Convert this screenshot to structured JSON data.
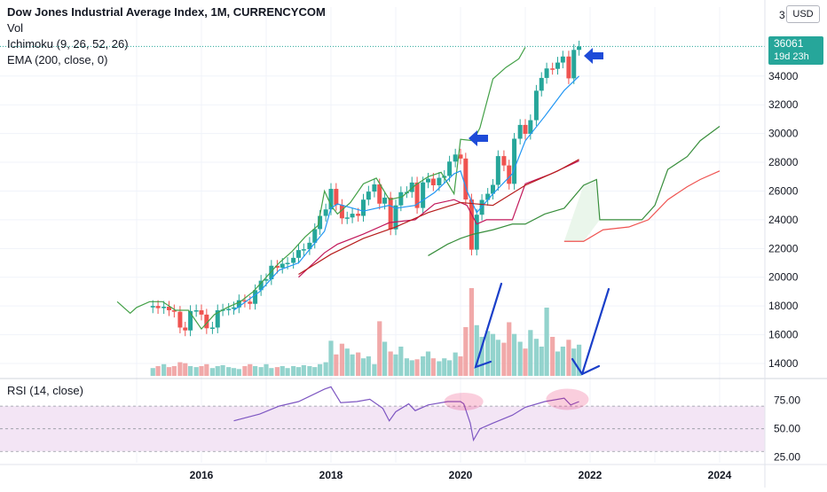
{
  "legend": {
    "title": "Dow Jones Industrial Average Index, 1M, CURRENCYCOM",
    "vol": "Vol",
    "ichimoku": "Ichimoku (9, 26, 52, 26)",
    "ema": "EMA (200, close, 0)",
    "rsi": "RSI (14, close)"
  },
  "currency_label": "USD",
  "last_price": {
    "value": "36061",
    "countdown": "19d 23h"
  },
  "colors": {
    "up": "#26a69a",
    "down": "#ef5350",
    "tenkan": "#2196f3",
    "kijun": "#c2185b",
    "lagging": "#43a047",
    "lead": "#388e3c",
    "ema": "#b71c1c",
    "rsi_line": "#7e57c2",
    "rsi_band": "#f3e5f5",
    "arrow_blue": "#1e4bd8",
    "highlight": "#e91e63"
  },
  "chart_data": {
    "type": "candlestick",
    "symbol": "Dow Jones Industrial Average Index",
    "interval": "1M",
    "y_axis_ticks": [
      14000,
      16000,
      18000,
      20000,
      22000,
      24000,
      26000,
      28000,
      30000,
      32000,
      34000
    ],
    "y_axis_top_partial_label": "3",
    "x_axis_ticks": [
      "2016",
      "2018",
      "2020",
      "2022",
      "2024"
    ],
    "x_range": [
      2014.6,
      2024.8
    ],
    "y_range": [
      13000,
      38000
    ],
    "candles": [
      {
        "t": 2015.25,
        "o": 17900,
        "c": 18000
      },
      {
        "t": 2015.33,
        "o": 18000,
        "c": 17850
      },
      {
        "t": 2015.42,
        "o": 17850,
        "c": 17950
      },
      {
        "t": 2015.5,
        "o": 17950,
        "c": 17700
      },
      {
        "t": 2015.58,
        "o": 17700,
        "c": 17600
      },
      {
        "t": 2015.67,
        "o": 17600,
        "c": 16500
      },
      {
        "t": 2015.75,
        "o": 16500,
        "c": 16300
      },
      {
        "t": 2015.83,
        "o": 16300,
        "c": 17650
      },
      {
        "t": 2015.92,
        "o": 17650,
        "c": 17700
      },
      {
        "t": 2016.0,
        "o": 17700,
        "c": 17400
      },
      {
        "t": 2016.08,
        "o": 17400,
        "c": 16450
      },
      {
        "t": 2016.17,
        "o": 16450,
        "c": 16500
      },
      {
        "t": 2016.25,
        "o": 16500,
        "c": 17700
      },
      {
        "t": 2016.33,
        "o": 17700,
        "c": 17750
      },
      {
        "t": 2016.42,
        "o": 17750,
        "c": 17800
      },
      {
        "t": 2016.5,
        "o": 17800,
        "c": 17900
      },
      {
        "t": 2016.58,
        "o": 17900,
        "c": 18400
      },
      {
        "t": 2016.67,
        "o": 18400,
        "c": 18300
      },
      {
        "t": 2016.75,
        "o": 18300,
        "c": 18150
      },
      {
        "t": 2016.83,
        "o": 18150,
        "c": 19100
      },
      {
        "t": 2016.92,
        "o": 19100,
        "c": 19760
      },
      {
        "t": 2017.0,
        "o": 19760,
        "c": 19860
      },
      {
        "t": 2017.08,
        "o": 19860,
        "c": 20800
      },
      {
        "t": 2017.17,
        "o": 20800,
        "c": 20660
      },
      {
        "t": 2017.25,
        "o": 20660,
        "c": 20940
      },
      {
        "t": 2017.33,
        "o": 20940,
        "c": 21000
      },
      {
        "t": 2017.42,
        "o": 21000,
        "c": 21350
      },
      {
        "t": 2017.5,
        "o": 21350,
        "c": 21890
      },
      {
        "t": 2017.58,
        "o": 21890,
        "c": 21950
      },
      {
        "t": 2017.67,
        "o": 21950,
        "c": 22400
      },
      {
        "t": 2017.75,
        "o": 22400,
        "c": 23350
      },
      {
        "t": 2017.83,
        "o": 23350,
        "c": 24270
      },
      {
        "t": 2017.92,
        "o": 24270,
        "c": 24720
      },
      {
        "t": 2018.0,
        "o": 24720,
        "c": 26150
      },
      {
        "t": 2018.08,
        "o": 26150,
        "c": 25030
      },
      {
        "t": 2018.17,
        "o": 25030,
        "c": 24100
      },
      {
        "t": 2018.25,
        "o": 24100,
        "c": 24160
      },
      {
        "t": 2018.33,
        "o": 24160,
        "c": 24420
      },
      {
        "t": 2018.42,
        "o": 24420,
        "c": 24270
      },
      {
        "t": 2018.5,
        "o": 24270,
        "c": 25400
      },
      {
        "t": 2018.58,
        "o": 25400,
        "c": 25960
      },
      {
        "t": 2018.67,
        "o": 25960,
        "c": 26460
      },
      {
        "t": 2018.75,
        "o": 26460,
        "c": 25120
      },
      {
        "t": 2018.83,
        "o": 25120,
        "c": 25540
      },
      {
        "t": 2018.92,
        "o": 25540,
        "c": 23330
      },
      {
        "t": 2019.0,
        "o": 23330,
        "c": 25000
      },
      {
        "t": 2019.08,
        "o": 25000,
        "c": 25920
      },
      {
        "t": 2019.17,
        "o": 25920,
        "c": 25930
      },
      {
        "t": 2019.25,
        "o": 25930,
        "c": 26590
      },
      {
        "t": 2019.33,
        "o": 26590,
        "c": 24820
      },
      {
        "t": 2019.42,
        "o": 24820,
        "c": 26600
      },
      {
        "t": 2019.5,
        "o": 26600,
        "c": 26860
      },
      {
        "t": 2019.58,
        "o": 26860,
        "c": 26400
      },
      {
        "t": 2019.67,
        "o": 26400,
        "c": 26920
      },
      {
        "t": 2019.75,
        "o": 26920,
        "c": 27050
      },
      {
        "t": 2019.83,
        "o": 27050,
        "c": 28050
      },
      {
        "t": 2019.92,
        "o": 28050,
        "c": 28540
      },
      {
        "t": 2020.0,
        "o": 28540,
        "c": 28260
      },
      {
        "t": 2020.08,
        "o": 28260,
        "c": 25410
      },
      {
        "t": 2020.17,
        "o": 25410,
        "c": 21920
      },
      {
        "t": 2020.25,
        "o": 21920,
        "c": 24350
      },
      {
        "t": 2020.33,
        "o": 24350,
        "c": 25380
      },
      {
        "t": 2020.42,
        "o": 25380,
        "c": 25810
      },
      {
        "t": 2020.5,
        "o": 25810,
        "c": 26430
      },
      {
        "t": 2020.58,
        "o": 26430,
        "c": 28430
      },
      {
        "t": 2020.67,
        "o": 28430,
        "c": 27780
      },
      {
        "t": 2020.75,
        "o": 27780,
        "c": 26500
      },
      {
        "t": 2020.83,
        "o": 26500,
        "c": 29640
      },
      {
        "t": 2020.92,
        "o": 29640,
        "c": 30600
      },
      {
        "t": 2021.0,
        "o": 30600,
        "c": 29980
      },
      {
        "t": 2021.08,
        "o": 29980,
        "c": 30930
      },
      {
        "t": 2021.17,
        "o": 30930,
        "c": 32980
      },
      {
        "t": 2021.25,
        "o": 32980,
        "c": 33870
      },
      {
        "t": 2021.33,
        "o": 33870,
        "c": 34530
      },
      {
        "t": 2021.42,
        "o": 34530,
        "c": 34500
      },
      {
        "t": 2021.5,
        "o": 34500,
        "c": 34940
      },
      {
        "t": 2021.58,
        "o": 34940,
        "c": 35360
      },
      {
        "t": 2021.67,
        "o": 35360,
        "c": 33840
      },
      {
        "t": 2021.75,
        "o": 33840,
        "c": 35820
      },
      {
        "t": 2021.83,
        "o": 35820,
        "c": 36061
      }
    ],
    "volume_relative": [
      0.08,
      0.1,
      0.12,
      0.09,
      0.1,
      0.14,
      0.13,
      0.1,
      0.09,
      0.1,
      0.12,
      0.08,
      0.1,
      0.11,
      0.09,
      0.08,
      0.07,
      0.1,
      0.12,
      0.1,
      0.09,
      0.12,
      0.08,
      0.09,
      0.1,
      0.08,
      0.1,
      0.09,
      0.11,
      0.1,
      0.09,
      0.12,
      0.14,
      0.36,
      0.22,
      0.33,
      0.28,
      0.22,
      0.24,
      0.18,
      0.2,
      0.12,
      0.56,
      0.35,
      0.25,
      0.22,
      0.3,
      0.18,
      0.16,
      0.17,
      0.2,
      0.25,
      0.18,
      0.15,
      0.18,
      0.16,
      0.24,
      0.2,
      0.5,
      0.9,
      0.52,
      0.4,
      0.46,
      0.43,
      0.37,
      0.34,
      0.55,
      0.43,
      0.35,
      0.28,
      0.47,
      0.38,
      0.3,
      0.7,
      0.4,
      0.25,
      0.3,
      0.37,
      0.28,
      0.32,
      0.45
    ],
    "tenkan_sen": [
      [
        2016.5,
        17700
      ],
      [
        2016.9,
        19000
      ],
      [
        2017.2,
        20500
      ],
      [
        2017.5,
        21000
      ],
      [
        2017.9,
        23200
      ],
      [
        2018.0,
        24800
      ],
      [
        2018.1,
        25100
      ],
      [
        2018.5,
        24600
      ],
      [
        2018.9,
        25000
      ],
      [
        2019.0,
        24800
      ],
      [
        2019.3,
        25000
      ],
      [
        2019.6,
        25900
      ],
      [
        2019.9,
        27200
      ],
      [
        2020.0,
        27400
      ],
      [
        2020.1,
        26000
      ],
      [
        2020.25,
        24500
      ],
      [
        2020.5,
        25800
      ],
      [
        2020.8,
        27200
      ],
      [
        2021.0,
        29500
      ],
      [
        2021.3,
        31200
      ],
      [
        2021.6,
        33000
      ],
      [
        2021.83,
        34000
      ]
    ],
    "kijun_sen": [
      [
        2017.5,
        20000
      ],
      [
        2017.9,
        21700
      ],
      [
        2018.1,
        22300
      ],
      [
        2018.5,
        23000
      ],
      [
        2018.9,
        23800
      ],
      [
        2019.3,
        24000
      ],
      [
        2019.6,
        25100
      ],
      [
        2019.9,
        25400
      ],
      [
        2020.1,
        25000
      ],
      [
        2020.25,
        23700
      ],
      [
        2020.4,
        24000
      ],
      [
        2020.8,
        24000
      ],
      [
        2021.0,
        26500
      ],
      [
        2021.4,
        27200
      ],
      [
        2021.83,
        28100
      ]
    ],
    "chikou_span": [
      [
        2014.7,
        18300
      ],
      [
        2014.9,
        17500
      ],
      [
        2015.0,
        17900
      ],
      [
        2015.2,
        18300
      ],
      [
        2015.4,
        18300
      ],
      [
        2015.6,
        17700
      ],
      [
        2015.8,
        17700
      ],
      [
        2016.0,
        16400
      ],
      [
        2016.2,
        17400
      ],
      [
        2016.4,
        17900
      ],
      [
        2016.6,
        18300
      ],
      [
        2016.8,
        19000
      ],
      [
        2017.0,
        20000
      ],
      [
        2017.2,
        21000
      ],
      [
        2017.4,
        21800
      ],
      [
        2017.6,
        22800
      ],
      [
        2017.8,
        23600
      ],
      [
        2017.9,
        26000
      ],
      [
        2018.0,
        25000
      ],
      [
        2018.1,
        24400
      ],
      [
        2018.3,
        25200
      ],
      [
        2018.5,
        26500
      ],
      [
        2018.7,
        26900
      ],
      [
        2018.9,
        25400
      ],
      [
        2019.1,
        25600
      ],
      [
        2019.3,
        26400
      ],
      [
        2019.5,
        27000
      ],
      [
        2019.7,
        27300
      ],
      [
        2019.9,
        25800
      ],
      [
        2020.0,
        29600
      ],
      [
        2020.2,
        29500
      ],
      [
        2020.3,
        30400
      ],
      [
        2020.5,
        33800
      ],
      [
        2020.7,
        34600
      ],
      [
        2020.9,
        35200
      ],
      [
        2021.0,
        36000
      ]
    ],
    "senkou_span_a": [
      [
        2019.5,
        21500
      ],
      [
        2019.8,
        22300
      ],
      [
        2020.0,
        22700
      ],
      [
        2020.2,
        23000
      ],
      [
        2020.5,
        23300
      ],
      [
        2020.8,
        23700
      ],
      [
        2021.0,
        23700
      ],
      [
        2021.3,
        24400
      ],
      [
        2021.6,
        24800
      ],
      [
        2021.9,
        26400
      ],
      [
        2022.1,
        26800
      ],
      [
        2022.15,
        24000
      ],
      [
        2022.8,
        24000
      ],
      [
        2023.0,
        25000
      ],
      [
        2023.2,
        27500
      ],
      [
        2023.5,
        28400
      ],
      [
        2023.7,
        29500
      ],
      [
        2024.0,
        30500
      ]
    ],
    "senkou_span_b": [
      [
        2021.6,
        22500
      ],
      [
        2021.9,
        22500
      ],
      [
        2022.2,
        23300
      ],
      [
        2022.6,
        23500
      ],
      [
        2022.9,
        24000
      ],
      [
        2023.2,
        25400
      ],
      [
        2023.5,
        26300
      ],
      [
        2023.7,
        26800
      ],
      [
        2024.0,
        27400
      ]
    ],
    "ema_200": [
      [
        2017.5,
        20200
      ],
      [
        2018.0,
        21600
      ],
      [
        2018.5,
        22700
      ],
      [
        2019.0,
        23500
      ],
      [
        2019.5,
        24500
      ],
      [
        2020.0,
        25200
      ],
      [
        2020.5,
        25000
      ],
      [
        2021.0,
        26400
      ],
      [
        2021.5,
        27400
      ],
      [
        2021.83,
        28200
      ]
    ],
    "rsi": {
      "axis_ticks": [
        "75.00",
        "50.00",
        "25.00"
      ],
      "band": [
        30,
        70
      ],
      "range": [
        20,
        92
      ],
      "points": [
        [
          2016.5,
          57
        ],
        [
          2016.9,
          63
        ],
        [
          2017.2,
          70
        ],
        [
          2017.5,
          74
        ],
        [
          2017.9,
          85
        ],
        [
          2018.0,
          87
        ],
        [
          2018.15,
          73
        ],
        [
          2018.4,
          74
        ],
        [
          2018.6,
          76
        ],
        [
          2018.8,
          68
        ],
        [
          2018.9,
          57
        ],
        [
          2019.0,
          65
        ],
        [
          2019.2,
          72
        ],
        [
          2019.3,
          66
        ],
        [
          2019.5,
          71
        ],
        [
          2019.8,
          74
        ],
        [
          2020.0,
          74
        ],
        [
          2020.05,
          72
        ],
        [
          2020.15,
          55
        ],
        [
          2020.2,
          40
        ],
        [
          2020.3,
          50
        ],
        [
          2020.5,
          55
        ],
        [
          2020.8,
          62
        ],
        [
          2021.0,
          69
        ],
        [
          2021.3,
          74
        ],
        [
          2021.6,
          77
        ],
        [
          2021.7,
          71
        ],
        [
          2021.83,
          74
        ]
      ]
    }
  },
  "annotations": [
    {
      "type": "arrow",
      "desc": "blue-arrow-left-2020"
    },
    {
      "type": "arrow",
      "desc": "blue-arrow-left-2021"
    },
    {
      "type": "line",
      "desc": "blue-v-mark-volume-2020"
    },
    {
      "type": "line",
      "desc": "blue-v-mark-volume-2022"
    },
    {
      "type": "highlight",
      "desc": "rsi-peak-highlight-2020"
    },
    {
      "type": "highlight",
      "desc": "rsi-peak-highlight-2021"
    }
  ]
}
